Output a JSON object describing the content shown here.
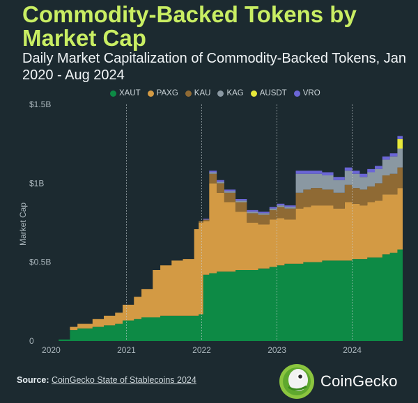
{
  "title": "Commodity-Backed Tokens by Market Cap",
  "subtitle": "Daily Market Capitalization of Commodity-Backed Tokens, Jan 2020 - Aug 2024",
  "source_prefix": "Source:",
  "source_link": "CoinGecko State of Stablecoins 2024",
  "brand_name": "CoinGecko",
  "chart_data": {
    "type": "area",
    "stacked": true,
    "ylabel": "Market Cap",
    "xlabel": "",
    "ylim": [
      0,
      1.5
    ],
    "yticks": [
      {
        "value": 0,
        "label": "0"
      },
      {
        "value": 0.5,
        "label": "$0.5B"
      },
      {
        "value": 1.0,
        "label": "$1B"
      },
      {
        "value": 1.5,
        "label": "$1.5B"
      }
    ],
    "xlim": [
      2019.95,
      2024.67
    ],
    "xticks": [
      {
        "value": 2020,
        "label": "2020"
      },
      {
        "value": 2021,
        "label": "2021"
      },
      {
        "value": 2022,
        "label": "2022"
      },
      {
        "value": 2023,
        "label": "2023"
      },
      {
        "value": 2024,
        "label": "2024"
      }
    ],
    "gridlines": [
      2021,
      2022,
      2023,
      2024
    ],
    "legend_position": "top",
    "x": [
      2019.95,
      2020.1,
      2020.25,
      2020.35,
      2020.5,
      2020.55,
      2020.7,
      2020.85,
      2020.95,
      2021.1,
      2021.2,
      2021.35,
      2021.45,
      2021.6,
      2021.75,
      2021.9,
      2021.96,
      2022.02,
      2022.1,
      2022.2,
      2022.3,
      2022.45,
      2022.6,
      2022.75,
      2022.9,
      2023.0,
      2023.1,
      2023.25,
      2023.35,
      2023.45,
      2023.6,
      2023.75,
      2023.9,
      2024.0,
      2024.1,
      2024.2,
      2024.3,
      2024.4,
      2024.5,
      2024.6,
      2024.67
    ],
    "series": [
      {
        "name": "XAUT",
        "color": "#0d8a45",
        "values": [
          0,
          0.01,
          0.07,
          0.08,
          0.08,
          0.09,
          0.1,
          0.11,
          0.13,
          0.14,
          0.15,
          0.15,
          0.16,
          0.16,
          0.16,
          0.16,
          0.17,
          0.42,
          0.43,
          0.44,
          0.44,
          0.45,
          0.45,
          0.46,
          0.47,
          0.48,
          0.49,
          0.49,
          0.5,
          0.5,
          0.51,
          0.51,
          0.51,
          0.52,
          0.52,
          0.53,
          0.53,
          0.55,
          0.56,
          0.58,
          0.59
        ]
      },
      {
        "name": "PAXG",
        "color": "#d39a44",
        "values": [
          0,
          0,
          0.02,
          0.03,
          0.03,
          0.05,
          0.06,
          0.07,
          0.1,
          0.14,
          0.18,
          0.3,
          0.32,
          0.35,
          0.36,
          0.55,
          0.58,
          0.34,
          0.57,
          0.5,
          0.44,
          0.37,
          0.3,
          0.28,
          0.3,
          0.3,
          0.28,
          0.35,
          0.35,
          0.36,
          0.35,
          0.33,
          0.37,
          0.35,
          0.34,
          0.35,
          0.36,
          0.38,
          0.37,
          0.39,
          0.39
        ]
      },
      {
        "name": "KAU",
        "color": "#8f6a34",
        "values": [
          0,
          0,
          0,
          0,
          0,
          0,
          0,
          0,
          0,
          0,
          0,
          0,
          0,
          0,
          0,
          0,
          0.01,
          0.01,
          0.06,
          0.06,
          0.06,
          0.06,
          0.06,
          0.06,
          0.06,
          0.07,
          0.07,
          0.1,
          0.11,
          0.11,
          0.1,
          0.1,
          0.11,
          0.1,
          0.1,
          0.1,
          0.11,
          0.12,
          0.13,
          0.13,
          0.13
        ]
      },
      {
        "name": "KAG",
        "color": "#8a98a2",
        "values": [
          0,
          0,
          0,
          0,
          0,
          0,
          0,
          0,
          0,
          0,
          0,
          0,
          0,
          0,
          0,
          0,
          0,
          0,
          0.01,
          0.01,
          0.01,
          0.01,
          0.01,
          0.01,
          0.01,
          0.01,
          0.01,
          0.12,
          0.1,
          0.09,
          0.09,
          0.08,
          0.09,
          0.09,
          0.08,
          0.09,
          0.09,
          0.1,
          0.11,
          0.12,
          0.12
        ]
      },
      {
        "name": "AUSDT",
        "color": "#e7e93a",
        "values": [
          0,
          0,
          0,
          0,
          0,
          0,
          0,
          0,
          0,
          0,
          0,
          0,
          0,
          0,
          0,
          0,
          0,
          0,
          0,
          0,
          0,
          0,
          0,
          0,
          0,
          0,
          0,
          0,
          0,
          0,
          0,
          0,
          0,
          0,
          0,
          0,
          0,
          0,
          0,
          0.06,
          0.06
        ]
      },
      {
        "name": "VRO",
        "color": "#6b66d6",
        "values": [
          0,
          0,
          0,
          0,
          0,
          0,
          0,
          0,
          0,
          0,
          0,
          0,
          0,
          0,
          0,
          0,
          0,
          0.005,
          0.01,
          0.01,
          0.01,
          0.01,
          0.01,
          0.01,
          0.01,
          0.01,
          0.01,
          0.02,
          0.02,
          0.02,
          0.02,
          0.02,
          0.02,
          0.02,
          0.02,
          0.02,
          0.02,
          0.02,
          0.02,
          0.02,
          0.02
        ]
      }
    ]
  }
}
